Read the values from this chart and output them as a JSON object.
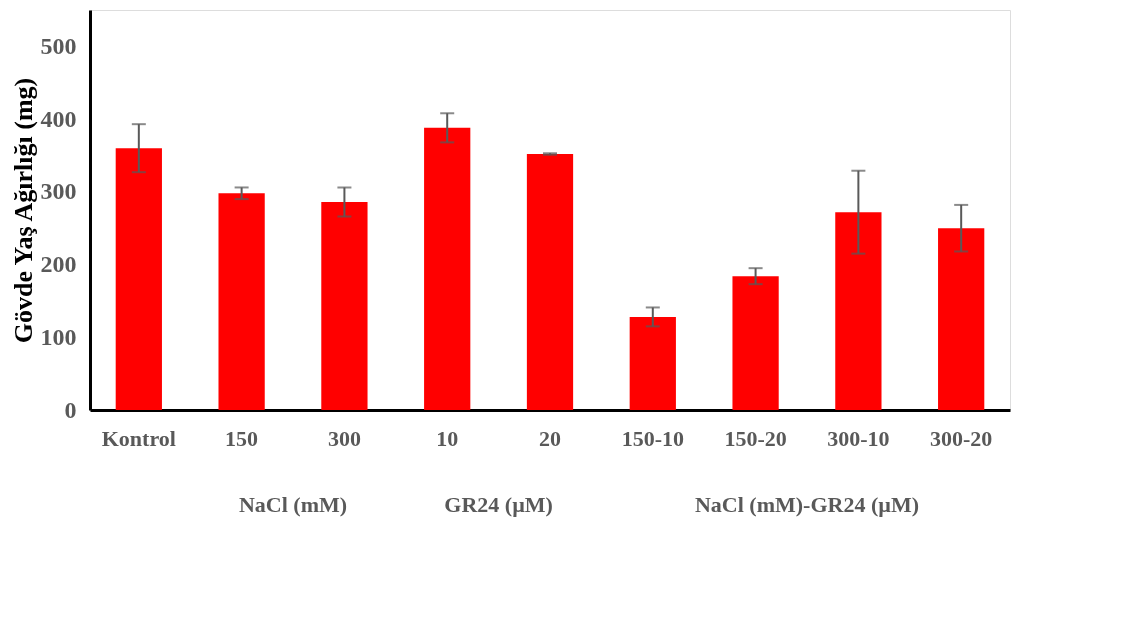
{
  "chart_data": {
    "type": "bar",
    "ylabel": "Gövde Yaş Ağırlığı (mg)",
    "categories": [
      "Kontrol",
      "150",
      "300",
      "10",
      "20",
      "150-10",
      "150-20",
      "300-10",
      "300-20"
    ],
    "values": [
      360,
      298,
      286,
      388,
      352,
      128,
      184,
      272,
      250
    ],
    "errors": [
      33,
      8,
      20,
      20,
      1,
      13,
      11,
      57,
      32
    ],
    "color": "#ff0000",
    "ylim": [
      0,
      550
    ],
    "yticks": [
      0,
      100,
      200,
      300,
      400,
      500
    ],
    "grid": false,
    "annotations": [
      "NaCl (mM)",
      "GR24 (µM)",
      "NaCl (mM)-GR24  (µM)"
    ]
  }
}
